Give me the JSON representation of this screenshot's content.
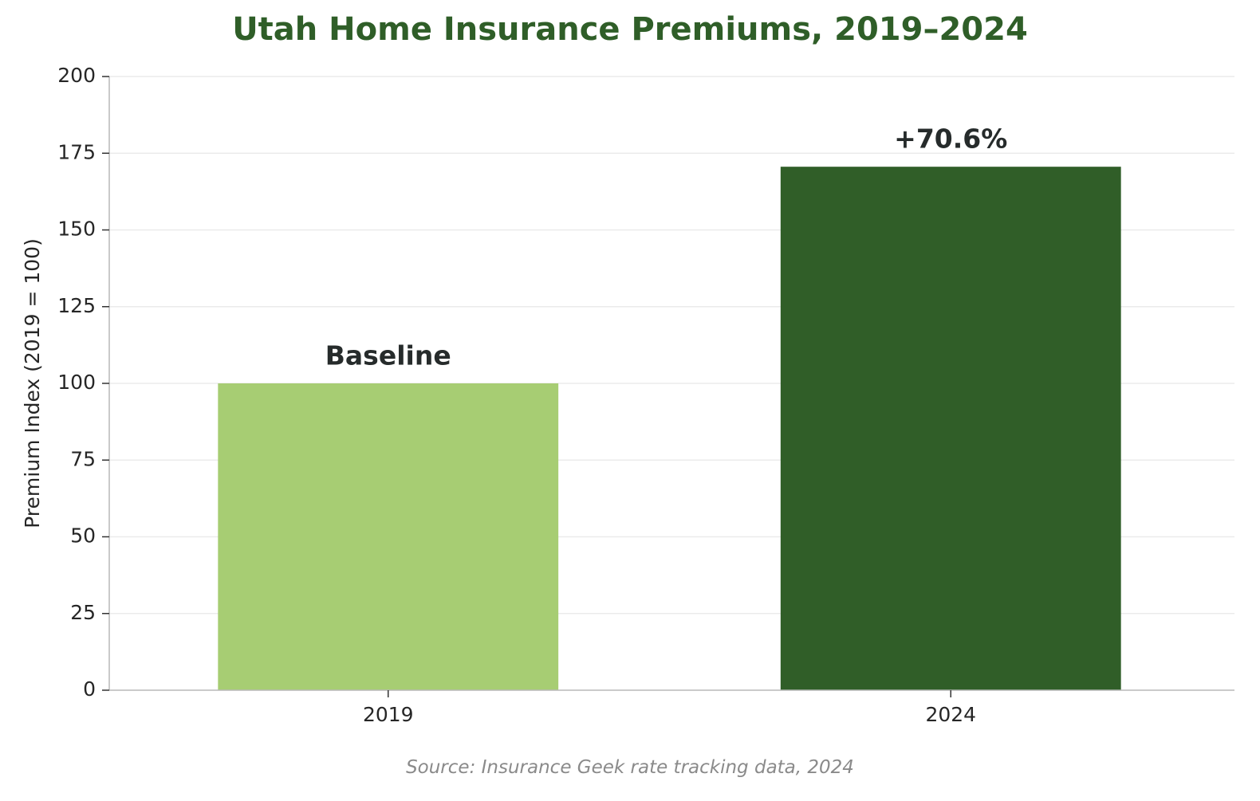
{
  "chart_data": {
    "type": "bar",
    "title": "Utah Home Insurance Premiums, 2019–2024",
    "xlabel": "",
    "ylabel": "Premium Index (2019 = 100)",
    "ylim": [
      0,
      200
    ],
    "yticks": [
      0,
      25,
      50,
      75,
      100,
      125,
      150,
      175,
      200
    ],
    "categories": [
      "2019",
      "2024"
    ],
    "values": [
      100,
      170.6
    ],
    "bar_colors": [
      "#a7cd73",
      "#305e28"
    ],
    "annotations": [
      "Baseline",
      "+70.6%"
    ],
    "grid": "horizontal",
    "source": "Source: Insurance Geek rate tracking data, 2024"
  }
}
